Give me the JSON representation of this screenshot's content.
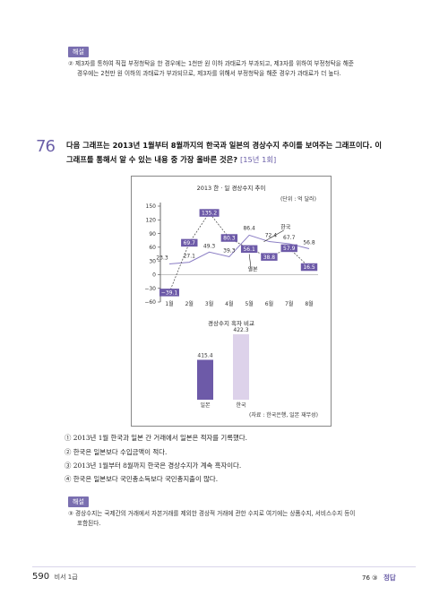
{
  "explanation_top": {
    "tag": "해설",
    "line1": "② 제3자를 통하여 직접 부정청탁을 한 경우에는 1천만 원 이하 과태료가 부과되고, 제3자를 위하여 부정청탁을 해준",
    "line2": "경우에는 2천만 원 이하의 과태료가 부과되므로, 제3자를 위해서 부정청탁을 해준 경우가 과태료가 더 높다."
  },
  "question": {
    "number": "76",
    "text_line1": "다음 그래프는 2013년 1월부터 8월까지의 한국과 일본의 경상수지 추이를 보여주는 그래프이다. 이",
    "text_line2": "그래프를 통해서 알 수 있는 내용 중 가장 올바른 것은?",
    "source": "[15년 1회]"
  },
  "chart_data": [
    {
      "type": "line",
      "title": "2013 한 · 일  경상수지 추이",
      "unit": "(단위 : 억 달러)",
      "categories": [
        "1월",
        "2월",
        "3월",
        "4월",
        "5월",
        "6월",
        "7월",
        "8월"
      ],
      "yticks": [
        "150",
        "120",
        "90",
        "60",
        "30",
        "0",
        "−30",
        "−60"
      ],
      "ylim": [
        -60,
        150
      ],
      "series": [
        {
          "name": "한국",
          "values": [
            23.3,
            27.1,
            49.3,
            39.3,
            86.4,
            72.4,
            67.7,
            56.8
          ],
          "labels": [
            "23.3",
            "27.1",
            "49.3",
            "39.3",
            "86.4",
            "72.4",
            "67.7",
            "56.8"
          ],
          "color": "#8a7dc4"
        },
        {
          "name": "일본",
          "values": [
            -39.1,
            69.7,
            135.2,
            80.3,
            56.1,
            38.8,
            57.9,
            16.5
          ],
          "labels": [
            "−39.1",
            "69.7",
            "135.2",
            "80.3",
            "56.1",
            "38.8",
            "57.9",
            "16.5"
          ],
          "color": "#6d5aa8"
        }
      ]
    },
    {
      "type": "bar",
      "title": "경상수지 흑자 비교",
      "categories": [
        "일본",
        "한국"
      ],
      "values": [
        415.4,
        422.3
      ],
      "labels": [
        "415.4",
        "422.3"
      ],
      "colors": [
        "#6d5aa8",
        "#ddd2ea"
      ]
    }
  ],
  "chart_source": "(자료 : 한국은행, 일본 재무성)",
  "choices": [
    "① 2013년 1월 한국과 일본 간 거래에서 일본은 적자를 기록했다.",
    "② 한국은 일본보다 수입금액이 적다.",
    "③ 2013년 1월부터 8월까지 한국은 경상수지가 계속 흑자이다.",
    "④ 한국은 일본보다 국민총소득보다 국민총지출이 많다."
  ],
  "explanation_bottom": {
    "tag": "해설",
    "line1": "③ 경상수지는 국제간의 거래에서 자본거래를 제외한 경상적 거래에 관한 수지로 여기에는 상품수지, 서비스수지 등이",
    "line2": "포함된다."
  },
  "footer": {
    "page": "590",
    "book": "비서 1급",
    "answer_ref": "76 ③",
    "answer_label": "정답"
  },
  "colors": {
    "accent": "#6b5fa8",
    "tag_bg": "#7a6fb0"
  }
}
